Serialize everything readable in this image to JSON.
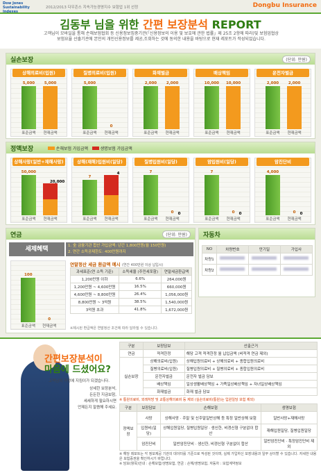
{
  "header": {
    "brand": "Dow Jones Sustainability Indexes",
    "brand_note": "2012/2013 다우존스 지속가능경영지수 보험업 1위 선정",
    "company": "Dongbu Insurance"
  },
  "title": {
    "name": "김동부 님을 위한",
    "highlight": "간편 보장분석",
    "suffix": "REPORT",
    "description": "고객님이 모바일을 통해 손해보험협회 등 신용정보집중기관(「신용정보의 이용 및 보호에 관한 법률」제 25조 2항에 따라)및 보험업협상 보험요율 산출기관에 본인의 개인신용정보를 제공,조회하는 것에 동의한 내용을 바탕으로 현재 레포트가 작성되었습니다."
  },
  "indemnity": {
    "title": "실손보장",
    "unit": "(단위: 만원)",
    "axis_labels": [
      "표준금액",
      "현재금액"
    ],
    "charts": [
      {
        "label": "상해의료비(입원)",
        "standard": {
          "value": 5000,
          "label": "5,000"
        },
        "current": {
          "value": 5000,
          "label": "5,000"
        }
      },
      {
        "label": "질병의료비(입원)",
        "standard": {
          "value": 5000,
          "label": "5,000"
        },
        "current": {
          "value": 0,
          "label": "0"
        }
      },
      {
        "label": "화재벌금",
        "standard": {
          "value": 2000,
          "label": "2,000"
        },
        "current": {
          "value": 2000,
          "label": "2,000"
        }
      },
      {
        "label": "배상책임",
        "standard": {
          "value": 10000,
          "label": "10,000"
        },
        "current": {
          "value": 10000,
          "label": "10,000"
        }
      },
      {
        "label": "운전자벌금",
        "standard": {
          "value": 2000,
          "label": "2,000"
        },
        "current": {
          "value": 2000,
          "label": "2,000"
        }
      }
    ]
  },
  "fixed": {
    "title": "정액보장",
    "legend": [
      "손해보험 가입금액",
      "생명보험 가입금액"
    ],
    "unit": "(단위: 만원)",
    "axis_labels": [
      "표준금액",
      "현재금액"
    ],
    "charts": [
      {
        "label": "상해사망(일반+재해사망)",
        "standard": {
          "value": 50000,
          "label": "50,000"
        },
        "current_nonlife": {
          "value": 20000,
          "label": "20,000"
        },
        "current_life": {
          "value": 20000,
          "label": "20,000"
        }
      },
      {
        "label": "상해(재해)입원비(일당)",
        "standard": {
          "value": 7,
          "label": "7"
        },
        "current_nonlife": {
          "value": 4,
          "label": "4"
        },
        "current_life": {
          "value": 4,
          "label": "4"
        }
      },
      {
        "label": "질병입원비(일당)",
        "standard": {
          "value": 7,
          "label": "7"
        },
        "current_nonlife": {
          "value": 0,
          "label": "0"
        },
        "current_life": {
          "value": 0,
          "label": "0"
        }
      },
      {
        "label": "암입원비(일당)",
        "standard": {
          "value": 7,
          "label": "7"
        },
        "current_nonlife": {
          "value": 0,
          "label": "0"
        },
        "current_life": {
          "value": 0,
          "label": "0"
        }
      },
      {
        "label": "암진단비",
        "standard": {
          "value": 4000,
          "label": "4,000"
        },
        "current_nonlife": {
          "value": 0,
          "label": "0"
        },
        "current_life": {
          "value": 0,
          "label": "0"
        }
      }
    ]
  },
  "pension": {
    "title": "연금",
    "unit": "(단위: 만원)",
    "benefit_title": "세제혜택",
    "benefits": [
      "1. 全 금융기관 합산 가입금액: 년간 1,800만원(월 150만원)",
      "2. 연간 소득공제한도: 400만원까지"
    ],
    "axis_labels": [
      "표준금액",
      "현재금액"
    ],
    "chart": {
      "standard": {
        "value": 100,
        "label": "100"
      },
      "current": {
        "value": 0,
        "label": "0"
      }
    },
    "table_title": "연말정산 세금 환급액 예시",
    "table_subtitle": "(연간 400만원 이상 납입시)",
    "table_header": [
      "과세표준(연 소득 기준)",
      "소득세율 (주민세포함)",
      "연말세금환급액"
    ],
    "table_rows": [
      [
        "1,200만원 이하",
        "6.6%",
        "264,000원"
      ],
      [
        "1,200만원 ~ 4,600만원",
        "16.5%",
        "660,000원"
      ],
      [
        "4,600만원 ~ 8,800만원",
        "26.4%",
        "1,056,000원"
      ],
      [
        "8,800만원 ~ 3억원",
        "38.5%",
        "1,540,000원"
      ],
      [
        "3억원 초과",
        "41.8%",
        "1,672,000원"
      ]
    ],
    "note": "※제시된 환급액은 연말정산 조건에 따라 달라질 수 있습니다."
  },
  "car": {
    "title": "자동차",
    "header": [
      "NO",
      "차량번호",
      "만기일",
      "가입사"
    ],
    "rows": [
      "차량1",
      "차량2"
    ]
  },
  "promo": {
    "headline": [
      "간편보장분석이",
      "마음에 드셨어요?"
    ],
    "lead": "고객님의 가정에 지킴이가 되겠습니다.",
    "lines": [
      "상세한 보장분석,",
      "든든한 지금보험,",
      "세세하게 필요하시면",
      "언제든지 말씀해 주세요."
    ]
  },
  "basis": {
    "header": [
      "구분",
      "보장담보",
      "산출근거"
    ],
    "group": "실손보장",
    "rows": [
      [
        "연금",
        "적격한정",
        "해당 고객 적격한정 월 납입금액 (비적격 연금 제외)"
      ],
      [
        "",
        "상해의료비(입원)",
        "상해입원의료비 + 상해의료비 + 종합입원의료비"
      ],
      [
        "",
        "질병의료비(입원)",
        "질병입원의료비 + 질병의료비 + 종합입원의료비"
      ],
      [
        "",
        "운전자벌금",
        "운전자 벌금 담보"
      ],
      [
        "",
        "배상책임",
        "일상생활배상책임 + 가족일상배상책임 + 자녀일상배상책임"
      ],
      [
        "",
        "화재벌금",
        "화재 벌금 담보"
      ]
    ],
    "note": "※ 통원의료비, 외래처방 및 교통상해의료비 등 제외 (실손의료비(통원)는 입원일당 보험 제외)",
    "header2": [
      "구분",
      "보장담보",
      "손해보험",
      "생명보험"
    ],
    "group2": "정액보장",
    "rows2": [
      [
        "사망",
        "상해사망 · 주말 및 신주말일반상해 등 특정 일반상해 보험",
        "일반사망+재해사망"
      ],
      [
        "입원비(일당)",
        "상해입원일당, 질병입원일당 · 생신한, 비갱신형 구분없이 합산",
        "재해입원일당, 질병입원일당"
      ],
      [
        "암진단비",
        "일반암진단비 · 생신한, 비갱신형 구분없이 합산",
        "일반암진단비 · 특정암진단비 제외"
      ]
    ],
    "footnotes": [
      "※ 해당 레포트는 각 정보제공 기관의 데이터를 기준으로 작성된 것이며, 실제 가입하신 보장내용과 일부 상이할 수 있습니다. 자세한 내용은 보험증권을 확인하시기 바랍니다.",
      "※ 담보(항목)안내 : 손해보험/생명보험, 연금 : 손해/생명보험, 자동차 : 보험계약정보"
    ]
  }
}
